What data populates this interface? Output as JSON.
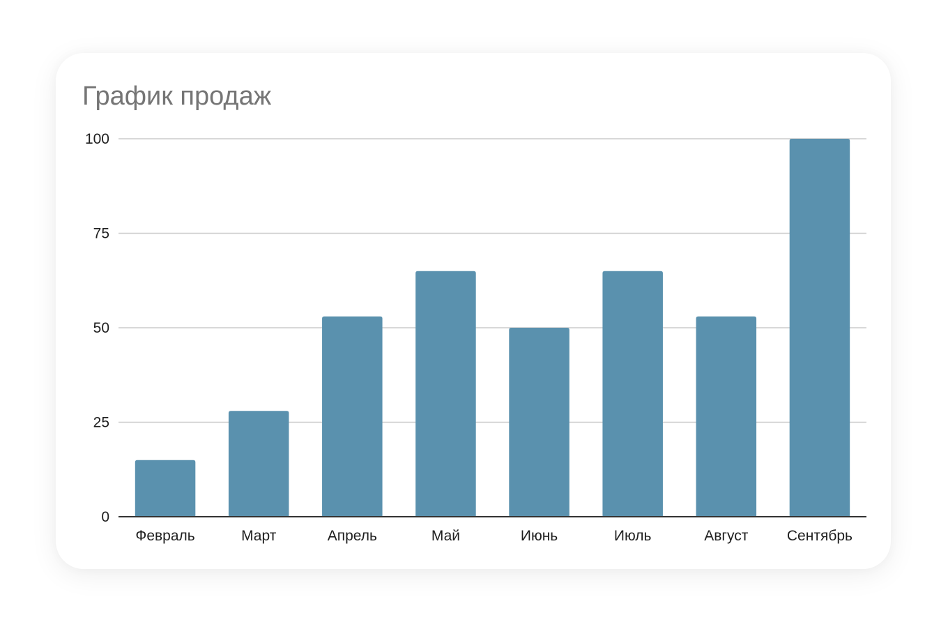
{
  "chart_data": {
    "type": "bar",
    "title": "График продаж",
    "xlabel": "",
    "ylabel": "",
    "categories": [
      "Февраль",
      "Март",
      "Апрель",
      "Май",
      "Июнь",
      "Июль",
      "Август",
      "Сентябрь"
    ],
    "values": [
      15,
      28,
      53,
      65,
      50,
      65,
      53,
      100
    ],
    "ylim": [
      0,
      100
    ],
    "yticks": [
      0,
      25,
      50,
      75,
      100
    ],
    "grid": true,
    "legend": "none",
    "colors": {
      "bar": "#5a91ae",
      "grid": "#cccccc",
      "axis": "#333333",
      "title": "#757575",
      "label": "#1f1f1f"
    }
  }
}
